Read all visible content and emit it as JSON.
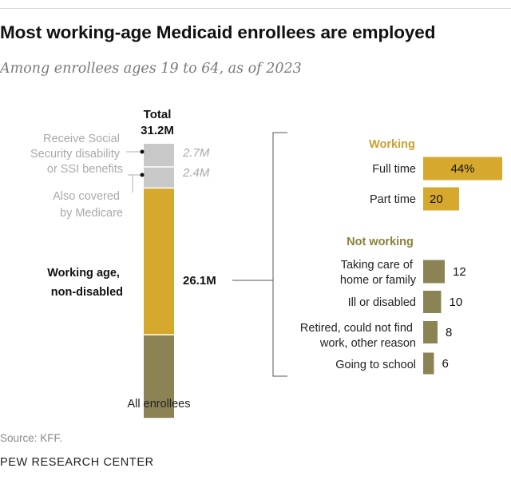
{
  "title": "Most working-age Medicaid enrollees are employed",
  "subtitle": "Among enrollees ages 19 to 64, as of 2023",
  "source": "Source: KFF.",
  "org": "PEW RESEARCH CENTER",
  "colors": {
    "grey_seg": "#c8c8c8",
    "working": "#d6a92e",
    "not_working": "#8c8355",
    "working_label": "#c9a12c",
    "not_working_label": "#8a7f3c",
    "muted_text": "#a9a9a9"
  },
  "chart_data": [
    {
      "type": "bar",
      "stacked": true,
      "title": "All enrollees",
      "total_label": "Total",
      "total_value": "31.2M",
      "segments": [
        {
          "key": "ssdi",
          "label": "Receive Social Security disability or SSI benefits",
          "value": 2.7,
          "display": "2.7M"
        },
        {
          "key": "medicare",
          "label": "Also covered by Medicare",
          "value": 2.4,
          "display": "2.4M"
        },
        {
          "key": "working_age",
          "label": "Working age, non-disabled",
          "value": 26.1,
          "display": "26.1M",
          "sub": {
            "working_share": 64,
            "not_working_share": 36
          }
        }
      ]
    },
    {
      "type": "bar",
      "orientation": "horizontal",
      "units": "%",
      "groups": [
        {
          "name": "Working",
          "items": [
            {
              "label": "Full time",
              "value": 44,
              "display": "44%"
            },
            {
              "label": "Part time",
              "value": 20,
              "display": "20"
            }
          ]
        },
        {
          "name": "Not working",
          "items": [
            {
              "label": "Taking care of home or family",
              "value": 12,
              "display": "12"
            },
            {
              "label": "Ill or disabled",
              "value": 10,
              "display": "10"
            },
            {
              "label": "Retired, could not find work, other reason",
              "value": 8,
              "display": "8"
            },
            {
              "label": "Going to school",
              "value": 6,
              "display": "6"
            }
          ]
        }
      ]
    }
  ]
}
